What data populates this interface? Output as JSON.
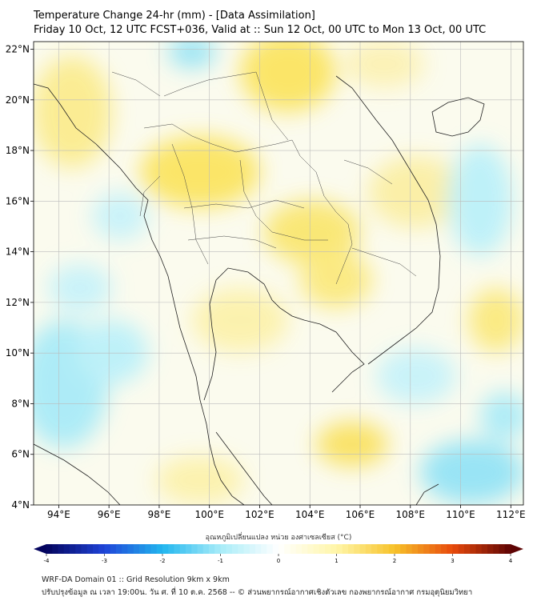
{
  "title": {
    "line1": "Temperature Change 24-hr (mm) - [Data Assimilation]",
    "line2": "Friday 10 Oct, 12 UTC FCST+036, Valid at :: Sun 12 Oct, 00 UTC to Mon 13 Oct, 00 UTC"
  },
  "axes": {
    "lat_labels": [
      "4°N",
      "6°N",
      "8°N",
      "10°N",
      "12°N",
      "14°N",
      "16°N",
      "18°N",
      "20°N",
      "22°N"
    ],
    "lat_values": [
      4,
      6,
      8,
      10,
      12,
      14,
      16,
      18,
      20,
      22
    ],
    "lon_labels": [
      "94°E",
      "96°E",
      "98°E",
      "100°E",
      "102°E",
      "104°E",
      "106°E",
      "108°E",
      "110°E",
      "112°E"
    ],
    "lon_values": [
      94,
      96,
      98,
      100,
      102,
      104,
      106,
      108,
      110,
      112
    ],
    "lon_range": [
      93,
      112.5
    ],
    "lat_range": [
      4,
      22.3
    ]
  },
  "colorbar": {
    "label": "อุณหภูมิเปลี่ยนแปลง หน่วย องศาเซลเซียส (°C)",
    "ticks": [
      "-4",
      "-3",
      "-2",
      "-1",
      "0",
      "1",
      "2",
      "3",
      "4"
    ],
    "tick_values": [
      -4,
      -3,
      -2,
      -1,
      0,
      1,
      2,
      3,
      4
    ],
    "colors": {
      "neg_extreme": "#04045e",
      "neg_strong": "#1f44d8",
      "neg_mid": "#22b6ee",
      "neg_light": "#a8ecf8",
      "neutral": "#ffffff",
      "pos_light": "#fff6a8",
      "pos_mid": "#f7c22a",
      "pos_strong": "#e84a0c",
      "pos_extreme": "#5e0404"
    }
  },
  "footer": {
    "line1": "WRF-DA Domain 01 :: Grid Resolution 9km x 9km",
    "line2": "ปรับปรุงข้อมูล ณ เวลา 19:00น. วัน ศ. ที่ 10 ต.ค. 2568 -- © ส่วนพยากรณ์อากาศเชิงตัวเลข กองพยากรณ์อากาศ กรมอุตุนิยมวิทยา"
  }
}
